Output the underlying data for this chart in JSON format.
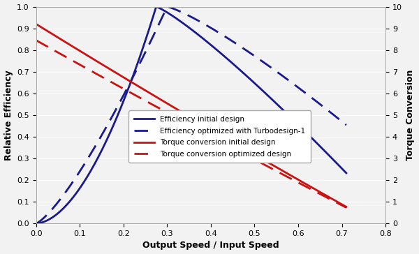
{
  "xlabel": "Output Speed / Input Speed",
  "ylabel_left": "Relative Efficiency",
  "ylabel_right": "Torque Conversion",
  "xlim": [
    0.0,
    0.8
  ],
  "ylim_left": [
    0.0,
    1.0
  ],
  "ylim_right": [
    0.0,
    10.0
  ],
  "xticks": [
    0.0,
    0.1,
    0.2,
    0.3,
    0.4,
    0.5,
    0.6,
    0.7,
    0.8
  ],
  "yticks_left": [
    0.0,
    0.1,
    0.2,
    0.3,
    0.4,
    0.5,
    0.6,
    0.7,
    0.8,
    0.9,
    1.0
  ],
  "yticks_right": [
    0,
    1,
    2,
    3,
    4,
    5,
    6,
    7,
    8,
    9,
    10
  ],
  "color_blue": "#1a1a8c",
  "color_red": "#cc1111",
  "background": "#f2f2f2",
  "legend_labels": [
    "Efficiency initial design",
    "Efficiency optimized with Turbodesign-1",
    "Torque conversion initial design",
    "Torque conversion optimized design"
  ]
}
